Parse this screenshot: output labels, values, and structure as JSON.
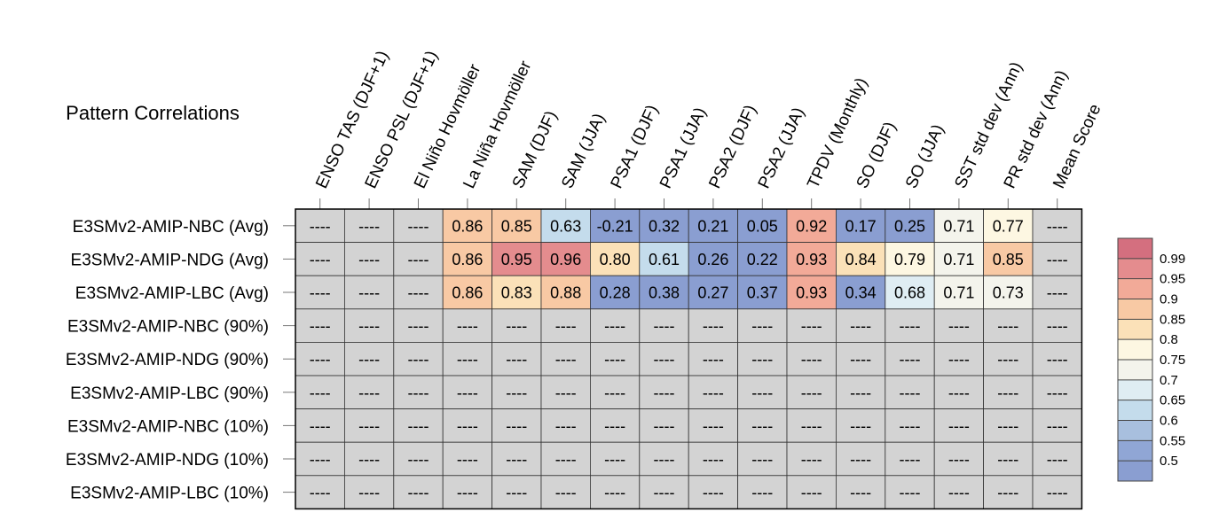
{
  "chart_data": {
    "type": "heatmap",
    "title": "Pattern Correlations",
    "columns": [
      "ENSO TAS (DJF+1)",
      "ENSO PSL (DJF+1)",
      "El Niño Hovmöller",
      "La Niña Hovmöller",
      "SAM (DJF)",
      "SAM (JJA)",
      "PSA1 (DJF)",
      "PSA1 (JJA)",
      "PSA2 (DJF)",
      "PSA2 (JJA)",
      "TPDV (Monthly)",
      "SO (DJF)",
      "SO (JJA)",
      "SST std dev (Ann)",
      "PR std dev (Ann)",
      "Mean Score"
    ],
    "rows": [
      "E3SMv2-AMIP-NBC (Avg)",
      "E3SMv2-AMIP-NDG (Avg)",
      "E3SMv2-AMIP-LBC (Avg)",
      "E3SMv2-AMIP-NBC (90%)",
      "E3SMv2-AMIP-NDG (90%)",
      "E3SMv2-AMIP-LBC (90%)",
      "E3SMv2-AMIP-NBC (10%)",
      "E3SMv2-AMIP-NDG (10%)",
      "E3SMv2-AMIP-LBC (10%)"
    ],
    "missing_label": "----",
    "values": [
      [
        null,
        null,
        null,
        "0.86",
        "0.85",
        "0.63",
        "-0.21",
        "0.32",
        "0.21",
        "0.05",
        "0.92",
        "0.17",
        "0.25",
        "0.71",
        "0.77",
        null
      ],
      [
        null,
        null,
        null,
        "0.86",
        "0.95",
        "0.96",
        "0.80",
        "0.61",
        "0.26",
        "0.22",
        "0.93",
        "0.84",
        "0.79",
        "0.71",
        "0.85",
        null
      ],
      [
        null,
        null,
        null,
        "0.86",
        "0.83",
        "0.88",
        "0.28",
        "0.38",
        "0.27",
        "0.37",
        "0.93",
        "0.34",
        "0.68",
        "0.71",
        "0.73",
        null
      ],
      [
        null,
        null,
        null,
        null,
        null,
        null,
        null,
        null,
        null,
        null,
        null,
        null,
        null,
        null,
        null,
        null
      ],
      [
        null,
        null,
        null,
        null,
        null,
        null,
        null,
        null,
        null,
        null,
        null,
        null,
        null,
        null,
        null,
        null
      ],
      [
        null,
        null,
        null,
        null,
        null,
        null,
        null,
        null,
        null,
        null,
        null,
        null,
        null,
        null,
        null,
        null
      ],
      [
        null,
        null,
        null,
        null,
        null,
        null,
        null,
        null,
        null,
        null,
        null,
        null,
        null,
        null,
        null,
        null
      ],
      [
        null,
        null,
        null,
        null,
        null,
        null,
        null,
        null,
        null,
        null,
        null,
        null,
        null,
        null,
        null,
        null
      ],
      [
        null,
        null,
        null,
        null,
        null,
        null,
        null,
        null,
        null,
        null,
        null,
        null,
        null,
        null,
        null,
        null
      ]
    ],
    "colorbar": {
      "levels": [
        "0.99",
        "0.95",
        "0.9",
        "0.85",
        "0.8",
        "0.75",
        "0.7",
        "0.65",
        "0.6",
        "0.55",
        "0.5"
      ],
      "colors": [
        "#d46f7f",
        "#e48c8e",
        "#f2aa98",
        "#f8c9a4",
        "#fbe1b8",
        "#fdf7e2",
        "#f4f4ec",
        "#dfedf3",
        "#c4dcec",
        "#a8bfde",
        "#90a6d5",
        "#8a9ed1"
      ]
    },
    "missing_color": "#d3d3d3"
  }
}
